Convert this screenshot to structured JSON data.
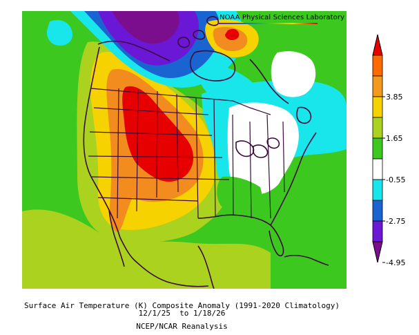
{
  "credit": "NOAA Physical Sciences Laboratory",
  "caption": {
    "line1": "Surface Air Temperature (K) Composite Anomaly (1991-2020 Climatology)",
    "line2": "12/1/25  to 1/18/26",
    "line3": "NCEP/NCAR Reanalysis"
  },
  "colorbar": {
    "colors": [
      "#7a0e8c",
      "#6b17d6",
      "#1a64d2",
      "#18e6ea",
      "#ffffff",
      "#3cc81e",
      "#aad21e",
      "#f5d200",
      "#f39a1e",
      "#ff6a00",
      "#e60000"
    ],
    "tick_labels": [
      "-4.95",
      "-2.75",
      "-0.55",
      "1.65",
      "3.85"
    ]
  },
  "palette": {
    "purple_dark": "#7a0e8c",
    "purple": "#6b17d6",
    "blue": "#1a64d2",
    "cyan": "#18e6ea",
    "white": "#ffffff",
    "green": "#3cc81e",
    "yellow_green": "#aad21e",
    "yellow": "#f5d200",
    "orange": "#f38c1e",
    "red_orange": "#ff6a00",
    "red": "#e60000",
    "outline": "#3a0a3c"
  }
}
